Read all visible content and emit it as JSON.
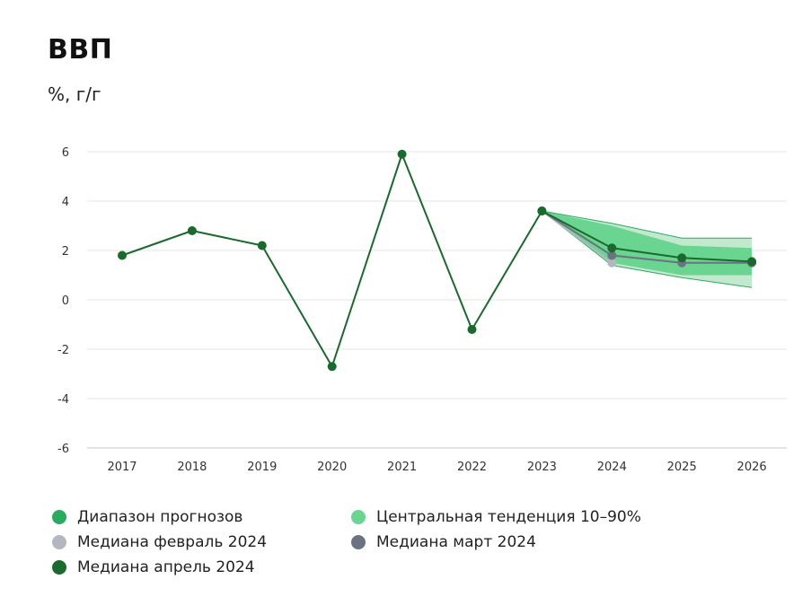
{
  "chart_data": {
    "type": "line",
    "title": "ВВП",
    "subtitle": "%, г/г",
    "categories": [
      "2017",
      "2018",
      "2019",
      "2020",
      "2021",
      "2022",
      "2023",
      "2024",
      "2025",
      "2026"
    ],
    "ylim": [
      -6,
      6
    ],
    "yticks": [
      6,
      4,
      2,
      0,
      -2,
      -4,
      -6
    ],
    "ytick_labels": [
      "6",
      "4",
      "2",
      "0",
      "-2",
      "-4",
      "-6"
    ],
    "grid": true,
    "series": [
      {
        "name": "Медиана апрель 2024",
        "color": "#1a6a2e",
        "values": [
          1.8,
          2.8,
          2.2,
          -2.7,
          5.9,
          -1.2,
          3.6,
          2.1,
          1.7,
          1.55
        ]
      },
      {
        "name": "Медиана март 2024",
        "color": "#6b7280",
        "values": [
          null,
          null,
          null,
          null,
          null,
          null,
          3.6,
          1.8,
          1.5,
          1.5
        ]
      },
      {
        "name": "Медиана февраль 2024",
        "color": "#b3b8c0",
        "values": [
          null,
          null,
          null,
          null,
          null,
          null,
          3.6,
          1.5,
          null,
          null
        ]
      }
    ],
    "bands": [
      {
        "name": "Диапазон прогнозов",
        "color": "#c2e8cd",
        "x": [
          "2023",
          "2024",
          "2025",
          "2026"
        ],
        "low": [
          3.6,
          1.4,
          0.9,
          0.5
        ],
        "high": [
          3.6,
          3.1,
          2.5,
          2.5
        ]
      },
      {
        "name": "Центральная тенденция 10–90%",
        "color": "#6ad590",
        "x": [
          "2023",
          "2024",
          "2025",
          "2026"
        ],
        "low": [
          3.6,
          1.5,
          1.0,
          1.0
        ],
        "high": [
          3.6,
          3.0,
          2.2,
          2.1
        ]
      }
    ]
  },
  "legend": [
    {
      "label": "Диапазон прогнозов",
      "color": "#2bab60"
    },
    {
      "label": "Центральная тенденция 10–90%",
      "color": "#6ad590"
    },
    {
      "label": "Медиана февраль 2024",
      "color": "#b3b8c0"
    },
    {
      "label": "Медиана март 2024",
      "color": "#6b7280"
    },
    {
      "label": "Медиана апрель 2024",
      "color": "#1a6a2e"
    }
  ]
}
